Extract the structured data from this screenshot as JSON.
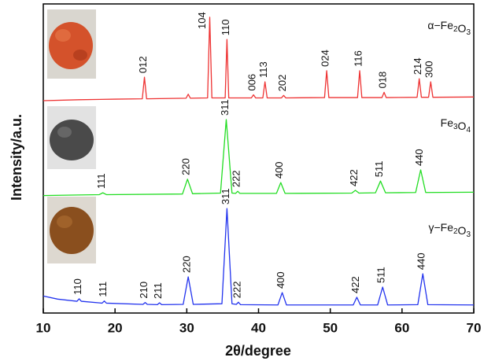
{
  "chart_data": {
    "type": "line",
    "x_label": "2θ/degree",
    "y_label": "Intensity/a.u.",
    "xlim": [
      10,
      70
    ],
    "xticks": [
      10,
      20,
      30,
      40,
      50,
      60,
      70
    ],
    "ylim": [
      0,
      100
    ],
    "series": [
      {
        "name": "α−Fe2O3",
        "color": "#ee3333",
        "x": [
          10,
          15,
          20,
          23.8,
          24.1,
          24.4,
          29.9,
          30.2,
          30.5,
          32.9,
          33.2,
          33.5,
          35.35,
          35.6,
          35.85,
          39.0,
          39.3,
          39.6,
          40.6,
          40.9,
          41.2,
          43.2,
          43.5,
          43.8,
          49.2,
          49.5,
          49.8,
          53.8,
          54.1,
          54.4,
          57.2,
          57.5,
          57.8,
          62.1,
          62.4,
          62.7,
          63.7,
          64.0,
          64.3,
          70
        ],
        "values": [
          68.7,
          69,
          69.2,
          69.3,
          76.3,
          69.3,
          69.5,
          70.8,
          69.5,
          69.6,
          95.7,
          69.6,
          69.6,
          88.5,
          69.6,
          69.6,
          70.6,
          69.6,
          69.6,
          74.8,
          69.6,
          69.6,
          70.4,
          69.6,
          69.7,
          78.4,
          69.7,
          69.7,
          78.4,
          69.7,
          69.7,
          71.4,
          69.7,
          69.8,
          75.8,
          69.8,
          69.8,
          74.8,
          69.8,
          69.9
        ],
        "point_labels": [
          null,
          null,
          null,
          null,
          "012",
          null,
          null,
          null,
          null,
          null,
          "104",
          null,
          null,
          "110",
          null,
          null,
          "006",
          null,
          null,
          "113",
          null,
          null,
          "202",
          null,
          null,
          "024",
          null,
          null,
          "116",
          null,
          null,
          "018",
          null,
          null,
          "214",
          null,
          null,
          "300",
          null,
          null
        ]
      },
      {
        "name": "Fe3O4",
        "color": "#22dd22",
        "x": [
          10,
          15,
          17.8,
          18.3,
          18.8,
          29.4,
          30.1,
          30.8,
          34.7,
          35.5,
          36.3,
          36.8,
          37.1,
          37.4,
          42.5,
          43.1,
          43.7,
          53.0,
          53.5,
          54.0,
          56.3,
          57.0,
          57.7,
          61.9,
          62.6,
          63.3,
          70
        ],
        "values": [
          38.0,
          38.2,
          38.3,
          38.9,
          38.3,
          38.5,
          43.3,
          38.6,
          38.8,
          62.6,
          38.8,
          38.7,
          39.4,
          38.7,
          38.7,
          42.2,
          38.7,
          38.8,
          39.7,
          38.8,
          38.9,
          42.7,
          38.9,
          39.0,
          46.3,
          39.0,
          39.1
        ],
        "point_labels": [
          null,
          null,
          null,
          "111",
          null,
          null,
          "220",
          null,
          null,
          "311",
          null,
          null,
          "222",
          null,
          null,
          "400",
          null,
          null,
          "422",
          null,
          null,
          "511",
          null,
          null,
          "440",
          null,
          null
        ]
      },
      {
        "name": "γ−Fe2O3",
        "color": "#2233ee",
        "x": [
          10,
          12,
          14.7,
          15.0,
          15.3,
          18.2,
          18.5,
          18.8,
          23.9,
          24.2,
          24.5,
          25.9,
          26.2,
          26.5,
          29.5,
          30.2,
          30.9,
          34.9,
          35.6,
          36.3,
          36.9,
          37.2,
          37.5,
          42.7,
          43.3,
          43.9,
          53.2,
          53.7,
          54.2,
          56.6,
          57.3,
          58.0,
          62.2,
          62.9,
          63.6,
          70
        ],
        "values": [
          5.5,
          4.5,
          3.8,
          4.6,
          3.8,
          3.2,
          3.9,
          3.2,
          2.8,
          3.4,
          2.8,
          2.7,
          3.3,
          2.7,
          2.8,
          11.7,
          2.8,
          3.0,
          33.8,
          3.0,
          2.8,
          3.5,
          2.7,
          2.6,
          6.6,
          2.6,
          2.6,
          5.1,
          2.6,
          2.6,
          8.4,
          2.6,
          2.7,
          12.7,
          2.7,
          2.6
        ],
        "point_labels": [
          null,
          null,
          null,
          "110",
          null,
          null,
          "111",
          null,
          null,
          "210",
          null,
          null,
          "211",
          null,
          null,
          "220",
          null,
          null,
          "311",
          null,
          null,
          "222",
          null,
          null,
          "400",
          null,
          null,
          "422",
          null,
          null,
          "511",
          null,
          null,
          "440",
          null,
          null
        ]
      }
    ]
  }
}
